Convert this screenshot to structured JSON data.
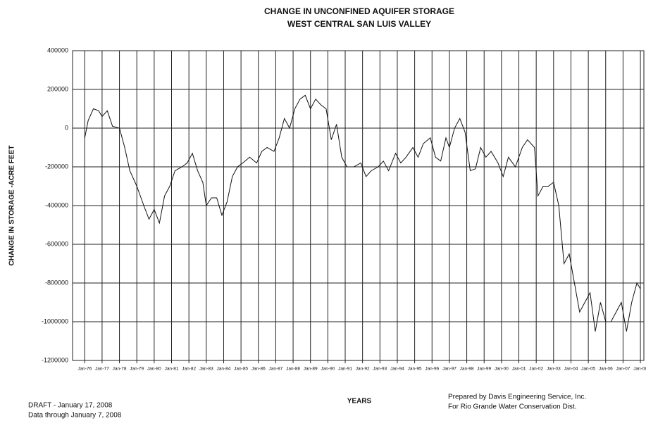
{
  "chart_data": {
    "type": "line",
    "title": "CHANGE IN UNCONFINED AQUIFER STORAGE",
    "subtitle": "WEST CENTRAL SAN LUIS VALLEY",
    "y_label": "CHANGE IN STORAGE -ACRE FEET",
    "x_label": "YEARS",
    "annotations": [
      "DRAFT - January 17, 2008",
      "Data through January 7, 2008",
      "Prepared by Davis Engineering Service, Inc.",
      "For Rio Grande Water Conservation Dist."
    ],
    "xlim": [
      1975.3,
      2008.2
    ],
    "xticks": [
      {
        "value": 1976,
        "label": "Jan-76"
      },
      {
        "value": 1977,
        "label": "Jan-77"
      },
      {
        "value": 1978,
        "label": "Jan-78"
      },
      {
        "value": 1979,
        "label": "Jan-79"
      },
      {
        "value": 1980,
        "label": "Jan-80"
      },
      {
        "value": 1981,
        "label": "Jan-81"
      },
      {
        "value": 1982,
        "label": "Jan-82"
      },
      {
        "value": 1983,
        "label": "Jan-83"
      },
      {
        "value": 1984,
        "label": "Jan-84"
      },
      {
        "value": 1985,
        "label": "Jan-85"
      },
      {
        "value": 1986,
        "label": "Jan-86"
      },
      {
        "value": 1987,
        "label": "Jan-87"
      },
      {
        "value": 1988,
        "label": "Jan-88"
      },
      {
        "value": 1989,
        "label": "Jan-89"
      },
      {
        "value": 1990,
        "label": "Jan-90"
      },
      {
        "value": 1991,
        "label": "Jan-91"
      },
      {
        "value": 1992,
        "label": "Jan-92"
      },
      {
        "value": 1993,
        "label": "Jan-93"
      },
      {
        "value": 1994,
        "label": "Jan-94"
      },
      {
        "value": 1995,
        "label": "Jan-95"
      },
      {
        "value": 1996,
        "label": "Jan-96"
      },
      {
        "value": 1997,
        "label": "Jan-97"
      },
      {
        "value": 1998,
        "label": "Jan-98"
      },
      {
        "value": 1999,
        "label": "Jan-99"
      },
      {
        "value": 2000,
        "label": "Jan-00"
      },
      {
        "value": 2001,
        "label": "Jan-01"
      },
      {
        "value": 2002,
        "label": "Jan-02"
      },
      {
        "value": 2003,
        "label": "Jan-03"
      },
      {
        "value": 2004,
        "label": "Jan-04"
      },
      {
        "value": 2005,
        "label": "Jan-05"
      },
      {
        "value": 2006,
        "label": "Jan-06"
      },
      {
        "value": 2007,
        "label": "Jan-07"
      },
      {
        "value": 2008,
        "label": "Jan-08"
      }
    ],
    "ylim": [
      -1200000,
      400000
    ],
    "yticks": [
      -1200000,
      -1000000,
      -800000,
      -600000,
      -400000,
      -200000,
      0,
      200000,
      400000
    ],
    "grid": true,
    "x": [
      1976.0,
      1976.2,
      1976.5,
      1976.8,
      1977.0,
      1977.3,
      1977.6,
      1978.0,
      1978.3,
      1978.6,
      1979.0,
      1979.4,
      1979.7,
      1980.0,
      1980.3,
      1980.6,
      1980.9,
      1981.2,
      1981.6,
      1981.9,
      1982.2,
      1982.5,
      1982.8,
      1983.0,
      1983.3,
      1983.6,
      1983.9,
      1984.2,
      1984.5,
      1984.8,
      1985.1,
      1985.5,
      1985.9,
      1986.2,
      1986.5,
      1986.9,
      1987.2,
      1987.5,
      1987.8,
      1988.1,
      1988.4,
      1988.7,
      1989.0,
      1989.3,
      1989.6,
      1989.9,
      1990.2,
      1990.5,
      1990.8,
      1991.1,
      1991.5,
      1991.9,
      1992.2,
      1992.5,
      1992.9,
      1993.2,
      1993.5,
      1993.9,
      1994.2,
      1994.5,
      1994.9,
      1995.2,
      1995.5,
      1995.9,
      1996.2,
      1996.5,
      1996.8,
      1997.0,
      1997.3,
      1997.6,
      1997.9,
      1998.2,
      1998.5,
      1998.8,
      1999.1,
      1999.4,
      1999.8,
      2000.1,
      2000.4,
      2000.8,
      2001.2,
      2001.5,
      2001.9,
      2002.1,
      2002.4,
      2002.7,
      2003.0,
      2003.3,
      2003.6,
      2003.9,
      2004.2,
      2004.5,
      2004.8,
      2005.1,
      2005.4,
      2005.7,
      2006.0,
      2006.3,
      2006.6,
      2006.9,
      2007.2,
      2007.5,
      2007.8,
      2008.0
    ],
    "series": [
      {
        "name": "Change in storage",
        "color": "#111111",
        "values": [
          -50000,
          40000,
          100000,
          90000,
          60000,
          90000,
          10000,
          0,
          -100000,
          -220000,
          -300000,
          -400000,
          -470000,
          -420000,
          -490000,
          -350000,
          -300000,
          -220000,
          -200000,
          -180000,
          -130000,
          -220000,
          -280000,
          -400000,
          -360000,
          -360000,
          -450000,
          -380000,
          -250000,
          -200000,
          -180000,
          -150000,
          -180000,
          -120000,
          -100000,
          -120000,
          -50000,
          50000,
          0,
          100000,
          150000,
          170000,
          100000,
          150000,
          120000,
          100000,
          -60000,
          20000,
          -150000,
          -200000,
          -200000,
          -180000,
          -250000,
          -220000,
          -200000,
          -170000,
          -220000,
          -130000,
          -180000,
          -150000,
          -100000,
          -150000,
          -80000,
          -50000,
          -150000,
          -170000,
          -50000,
          -100000,
          0,
          50000,
          -20000,
          -220000,
          -210000,
          -100000,
          -150000,
          -120000,
          -180000,
          -250000,
          -150000,
          -200000,
          -100000,
          -60000,
          -100000,
          -350000,
          -300000,
          -300000,
          -280000,
          -400000,
          -700000,
          -650000,
          -800000,
          -950000,
          -900000,
          -850000,
          -1050000,
          -900000,
          -1000000,
          -1000000,
          -950000,
          -900000,
          -1050000,
          -900000,
          -800000,
          -830000
        ]
      }
    ]
  }
}
